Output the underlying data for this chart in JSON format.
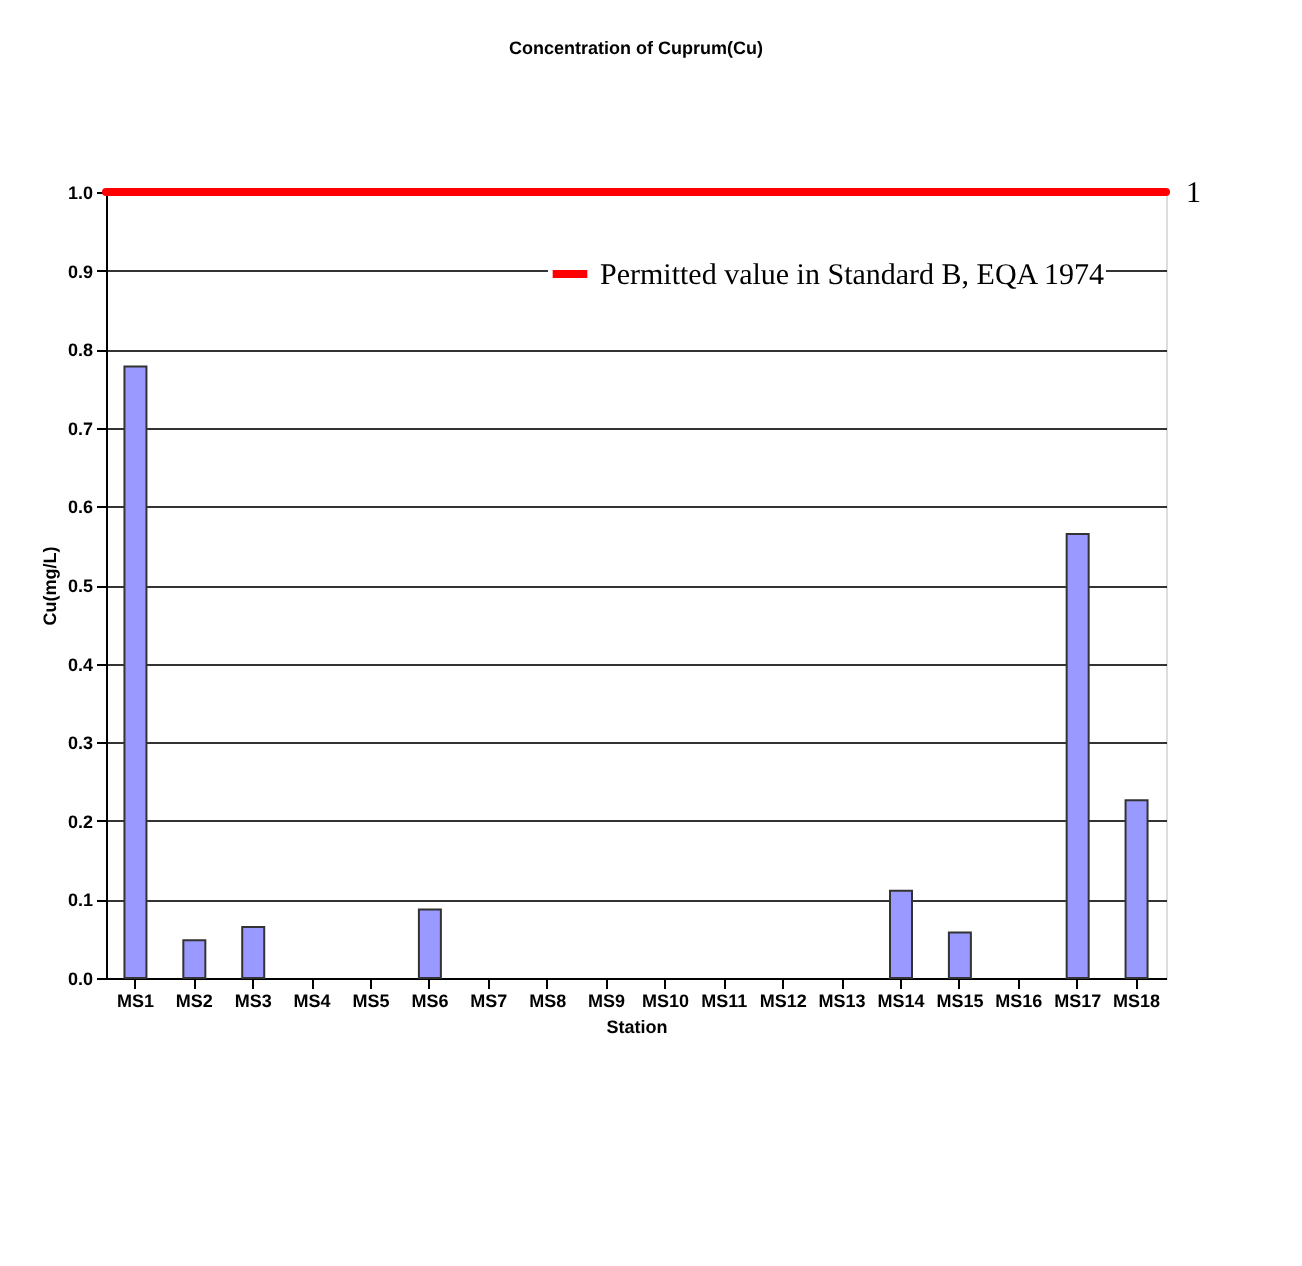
{
  "chart_data": {
    "type": "bar",
    "title": "Concentration of Cuprum(Cu)",
    "xlabel": "Station",
    "ylabel": "Cu(mg/L)",
    "categories": [
      "MS1",
      "MS2",
      "MS3",
      "MS4",
      "MS5",
      "MS6",
      "MS7",
      "MS8",
      "MS9",
      "MS10",
      "MS11",
      "MS12",
      "MS13",
      "MS14",
      "MS15",
      "MS16",
      "MS17",
      "MS18"
    ],
    "values": [
      0.778,
      0.048,
      0.065,
      0,
      0,
      0.087,
      0,
      0,
      0,
      0,
      0,
      0,
      0,
      0.111,
      0.058,
      0,
      0.565,
      0.226
    ],
    "color": "#9999ff",
    "ylim": [
      0,
      1
    ],
    "yticks": [
      {
        "value": 0,
        "label": "0.0"
      },
      0.1,
      0.2,
      0.3,
      0.4,
      0.5,
      0.6,
      0.7,
      0.8,
      0.9,
      {
        "value": 1,
        "label": "1.0"
      }
    ],
    "grid": "y",
    "legend": "top right",
    "ref_lines": [
      {
        "axis": "y",
        "value": 1,
        "label": "Permitted value in Standard B, EQA 1974",
        "color": "#ff0000"
      }
    ],
    "annotations": [
      "1"
    ]
  }
}
